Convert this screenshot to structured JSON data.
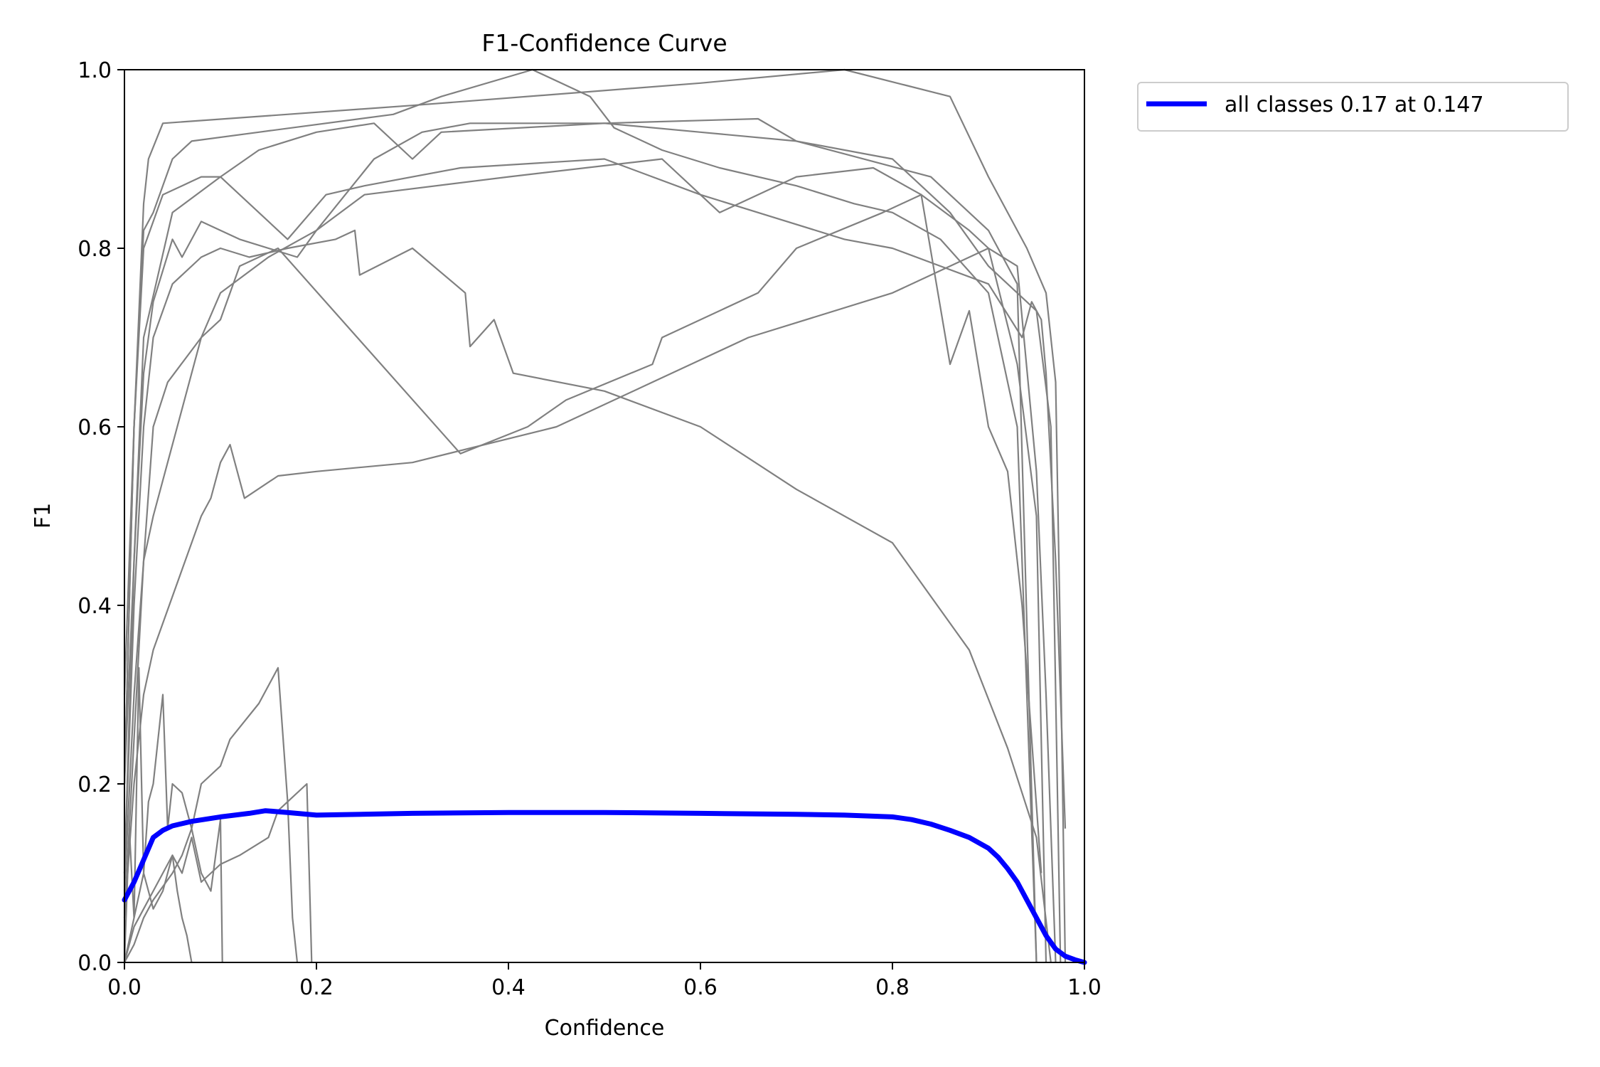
{
  "chart_data": {
    "type": "line",
    "title": "F1-Confidence Curve",
    "xlabel": "Confidence",
    "ylabel": "F1",
    "xlim": [
      0,
      1
    ],
    "ylim": [
      0,
      1
    ],
    "xticks": [
      "0.0",
      "0.2",
      "0.4",
      "0.6",
      "0.8",
      "1.0"
    ],
    "yticks": [
      "0.0",
      "0.2",
      "0.4",
      "0.6",
      "0.8",
      "1.0"
    ],
    "grid": false,
    "legend_position": "outside-top-right",
    "legend": [
      {
        "label": "all classes 0.17 at 0.147",
        "color": "#0000ff"
      }
    ],
    "class_color": "#808080",
    "class_series": [
      {
        "x": [
          0,
          0.01,
          0.02,
          0.025,
          0.04,
          0.3,
          0.6,
          0.75,
          0.86,
          0.9,
          0.94,
          0.96,
          0.97,
          0.975,
          0.98
        ],
        "y": [
          0.2,
          0.6,
          0.85,
          0.9,
          0.94,
          0.96,
          0.985,
          1.0,
          0.97,
          0.88,
          0.8,
          0.75,
          0.65,
          0.35,
          0
        ]
      },
      {
        "x": [
          0,
          0.01,
          0.02,
          0.03,
          0.05,
          0.07,
          0.14,
          0.28,
          0.33,
          0.425,
          0.485,
          0.51,
          0.56,
          0.62,
          0.7,
          0.76,
          0.8,
          0.85,
          0.9,
          0.93,
          0.95
        ],
        "y": [
          0.3,
          0.6,
          0.82,
          0.84,
          0.9,
          0.92,
          0.93,
          0.95,
          0.97,
          1.0,
          0.97,
          0.935,
          0.91,
          0.89,
          0.87,
          0.85,
          0.84,
          0.81,
          0.75,
          0.6,
          0
        ]
      },
      {
        "x": [
          0,
          0.02,
          0.05,
          0.1,
          0.14,
          0.2,
          0.26,
          0.3,
          0.33,
          0.5,
          0.66,
          0.7,
          0.84,
          0.9,
          0.93,
          0.95
        ],
        "y": [
          0.2,
          0.7,
          0.84,
          0.88,
          0.91,
          0.93,
          0.94,
          0.9,
          0.93,
          0.94,
          0.945,
          0.92,
          0.88,
          0.82,
          0.76,
          0
        ]
      },
      {
        "x": [
          0,
          0.01,
          0.02,
          0.04,
          0.06,
          0.08,
          0.1,
          0.17,
          0.21,
          0.25,
          0.35,
          0.5,
          0.6,
          0.66,
          0.75,
          0.8,
          0.85,
          0.9,
          0.935,
          0.945,
          0.955,
          0.96,
          0.97,
          0.98
        ],
        "y": [
          0.2,
          0.6,
          0.8,
          0.86,
          0.87,
          0.88,
          0.88,
          0.81,
          0.86,
          0.87,
          0.89,
          0.9,
          0.86,
          0.84,
          0.81,
          0.8,
          0.78,
          0.76,
          0.7,
          0.74,
          0.72,
          0.66,
          0.45,
          0.15
        ]
      },
      {
        "x": [
          0,
          0.01,
          0.02,
          0.03,
          0.05,
          0.06,
          0.08,
          0.12,
          0.18,
          0.2,
          0.25,
          0.4,
          0.56,
          0.62,
          0.66,
          0.7,
          0.78,
          0.83,
          0.88,
          0.9,
          0.93,
          0.95,
          0.96
        ],
        "y": [
          0.1,
          0.45,
          0.66,
          0.74,
          0.81,
          0.79,
          0.83,
          0.81,
          0.79,
          0.82,
          0.86,
          0.88,
          0.9,
          0.84,
          0.86,
          0.88,
          0.89,
          0.86,
          0.82,
          0.8,
          0.67,
          0.5,
          0
        ]
      },
      {
        "x": [
          0,
          0.01,
          0.02,
          0.03,
          0.05,
          0.08,
          0.1,
          0.13,
          0.17,
          0.22,
          0.24,
          0.245,
          0.3,
          0.355,
          0.36,
          0.385,
          0.405,
          0.5,
          0.6,
          0.7,
          0.8,
          0.88,
          0.92,
          0.95,
          0.965
        ],
        "y": [
          0.1,
          0.4,
          0.6,
          0.7,
          0.76,
          0.79,
          0.8,
          0.79,
          0.8,
          0.81,
          0.82,
          0.77,
          0.8,
          0.75,
          0.69,
          0.72,
          0.66,
          0.64,
          0.6,
          0.53,
          0.47,
          0.35,
          0.24,
          0.14,
          0
        ]
      },
      {
        "x": [
          0,
          0.01,
          0.02,
          0.03,
          0.05,
          0.08,
          0.1,
          0.12,
          0.16,
          0.35,
          0.42,
          0.46,
          0.55,
          0.56,
          0.66,
          0.7,
          0.79,
          0.83,
          0.86,
          0.88,
          0.9,
          0.92,
          0.935,
          0.945,
          0.955
        ],
        "y": [
          0.08,
          0.3,
          0.45,
          0.5,
          0.58,
          0.7,
          0.72,
          0.78,
          0.8,
          0.57,
          0.6,
          0.63,
          0.67,
          0.7,
          0.75,
          0.8,
          0.84,
          0.86,
          0.67,
          0.73,
          0.6,
          0.55,
          0.4,
          0.25,
          0.1
        ]
      },
      {
        "x": [
          0,
          0.01,
          0.02,
          0.03,
          0.04,
          0.06,
          0.08,
          0.09,
          0.1,
          0.11,
          0.125,
          0.16,
          0.2,
          0.3,
          0.45,
          0.55,
          0.65,
          0.8,
          0.9,
          0.93,
          0.95,
          0.96,
          0.97
        ],
        "y": [
          0.05,
          0.2,
          0.3,
          0.35,
          0.38,
          0.44,
          0.5,
          0.52,
          0.56,
          0.58,
          0.52,
          0.545,
          0.55,
          0.56,
          0.6,
          0.65,
          0.7,
          0.75,
          0.8,
          0.78,
          0.55,
          0.3,
          0
        ]
      },
      {
        "x": [
          0,
          0.01,
          0.02,
          0.03,
          0.045,
          0.08,
          0.1,
          0.15,
          0.2,
          0.26,
          0.31,
          0.36,
          0.4,
          0.5,
          0.6,
          0.7,
          0.8,
          0.86,
          0.9,
          0.95,
          0.965,
          0.975
        ],
        "y": [
          0.05,
          0.25,
          0.45,
          0.6,
          0.65,
          0.7,
          0.75,
          0.79,
          0.82,
          0.9,
          0.93,
          0.94,
          0.94,
          0.94,
          0.93,
          0.92,
          0.9,
          0.84,
          0.78,
          0.73,
          0.6,
          0
        ]
      },
      {
        "x": [
          0,
          0.005,
          0.01,
          0.015,
          0.02,
          0.025,
          0.03,
          0.04,
          0.045,
          0.05,
          0.06,
          0.07,
          0.08,
          0.1,
          0.11,
          0.14,
          0.16,
          0.17,
          0.175,
          0.18
        ],
        "y": [
          0,
          0.15,
          0.05,
          0.33,
          0.1,
          0.18,
          0.2,
          0.3,
          0.15,
          0.2,
          0.19,
          0.15,
          0.2,
          0.22,
          0.25,
          0.29,
          0.33,
          0.18,
          0.05,
          0
        ]
      },
      {
        "x": [
          0,
          0.01,
          0.02,
          0.03,
          0.04,
          0.05,
          0.06,
          0.07,
          0.08,
          0.1,
          0.12,
          0.15,
          0.16,
          0.17,
          0.19,
          0.195
        ],
        "y": [
          0,
          0.05,
          0.1,
          0.06,
          0.08,
          0.12,
          0.1,
          0.14,
          0.09,
          0.11,
          0.12,
          0.14,
          0.17,
          0.18,
          0.2,
          0
        ]
      },
      {
        "x": [
          0,
          0.01,
          0.02,
          0.03,
          0.04,
          0.05,
          0.055,
          0.06,
          0.065,
          0.07
        ],
        "y": [
          0,
          0.04,
          0.06,
          0.08,
          0.1,
          0.12,
          0.08,
          0.05,
          0.03,
          0
        ]
      },
      {
        "x": [
          0,
          0.01,
          0.02,
          0.03,
          0.05,
          0.06,
          0.07,
          0.08,
          0.09,
          0.1,
          0.102
        ],
        "y": [
          0,
          0.02,
          0.05,
          0.07,
          0.1,
          0.12,
          0.15,
          0.1,
          0.08,
          0.16,
          0
        ]
      }
    ],
    "series": [
      {
        "name": "all classes 0.17 at 0.147",
        "color": "#0000ff",
        "x": [
          0,
          0.01,
          0.02,
          0.03,
          0.04,
          0.05,
          0.07,
          0.1,
          0.13,
          0.147,
          0.17,
          0.2,
          0.3,
          0.4,
          0.5,
          0.6,
          0.7,
          0.75,
          0.8,
          0.82,
          0.84,
          0.86,
          0.88,
          0.9,
          0.91,
          0.92,
          0.93,
          0.94,
          0.95,
          0.96,
          0.97,
          0.98,
          0.99,
          1.0
        ],
        "y": [
          0.07,
          0.09,
          0.115,
          0.14,
          0.148,
          0.153,
          0.158,
          0.163,
          0.167,
          0.17,
          0.168,
          0.165,
          0.167,
          0.168,
          0.168,
          0.167,
          0.166,
          0.165,
          0.163,
          0.16,
          0.155,
          0.148,
          0.14,
          0.128,
          0.118,
          0.105,
          0.09,
          0.07,
          0.05,
          0.03,
          0.015,
          0.007,
          0.003,
          0.0
        ]
      }
    ]
  }
}
